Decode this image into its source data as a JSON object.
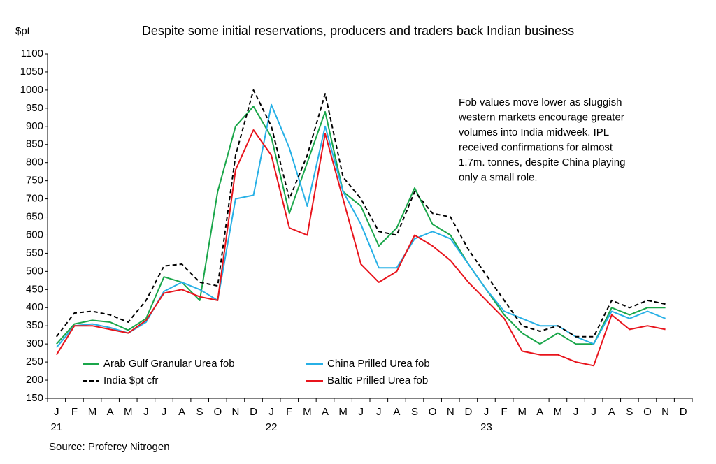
{
  "chart_data": {
    "type": "line",
    "title": "Despite some initial reservations, producers and traders back Indian business",
    "y_label": "$pt",
    "source": "Source: Profercy Nitrogen",
    "annotation": [
      "Fob values move lower as sluggish",
      "western markets encourage greater",
      "volumes into India midweek. IPL",
      "received confirmations for almost",
      "1.7m. tonnes, despite China playing",
      "only a small role."
    ],
    "categories": [
      "J",
      "F",
      "M",
      "A",
      "M",
      "J",
      "J",
      "A",
      "S",
      "O",
      "N",
      "D",
      "J",
      "F",
      "M",
      "A",
      "M",
      "J",
      "J",
      "A",
      "S",
      "O",
      "N",
      "D",
      "J",
      "F",
      "M",
      "A",
      "M",
      "J",
      "J",
      "A",
      "S",
      "O",
      "N",
      "D"
    ],
    "year_labels": [
      "21",
      "22",
      "23"
    ],
    "series": [
      {
        "name": "Arab Gulf Granular Urea fob",
        "color": "#1aa64a",
        "dash": false,
        "values": [
          300,
          355,
          365,
          360,
          338,
          370,
          485,
          470,
          420,
          720,
          900,
          955,
          870,
          660,
          800,
          940,
          720,
          680,
          570,
          620,
          730,
          630,
          600,
          520,
          450,
          380,
          330,
          300,
          330,
          300,
          300,
          400,
          380,
          400,
          400,
          null
        ]
      },
      {
        "name": "China Prilled Urea fob",
        "color": "#27b0e6",
        "dash": false,
        "values": [
          290,
          350,
          355,
          345,
          330,
          360,
          445,
          470,
          450,
          420,
          700,
          710,
          960,
          840,
          680,
          900,
          720,
          630,
          510,
          510,
          590,
          610,
          590,
          520,
          450,
          390,
          370,
          350,
          350,
          320,
          300,
          390,
          370,
          390,
          370,
          null
        ]
      },
      {
        "name": "India $pt cfr",
        "color": "#000000",
        "dash": true,
        "values": [
          320,
          385,
          390,
          380,
          360,
          420,
          515,
          520,
          470,
          460,
          820,
          1000,
          900,
          700,
          820,
          990,
          760,
          700,
          610,
          600,
          720,
          660,
          650,
          560,
          490,
          420,
          350,
          335,
          350,
          320,
          320,
          420,
          400,
          420,
          410,
          null
        ]
      },
      {
        "name": "Baltic Prilled Urea fob",
        "color": "#e8141c",
        "dash": false,
        "values": [
          270,
          350,
          350,
          340,
          330,
          365,
          440,
          450,
          430,
          420,
          780,
          890,
          820,
          620,
          600,
          880,
          700,
          520,
          470,
          500,
          600,
          570,
          530,
          470,
          420,
          370,
          280,
          270,
          270,
          250,
          240,
          380,
          340,
          350,
          340,
          null
        ]
      }
    ],
    "ylim": [
      150,
      1100
    ],
    "yticks": [
      150,
      200,
      250,
      300,
      350,
      400,
      450,
      500,
      550,
      600,
      650,
      700,
      750,
      800,
      850,
      900,
      950,
      1000,
      1050,
      1100
    ],
    "grid": false
  }
}
